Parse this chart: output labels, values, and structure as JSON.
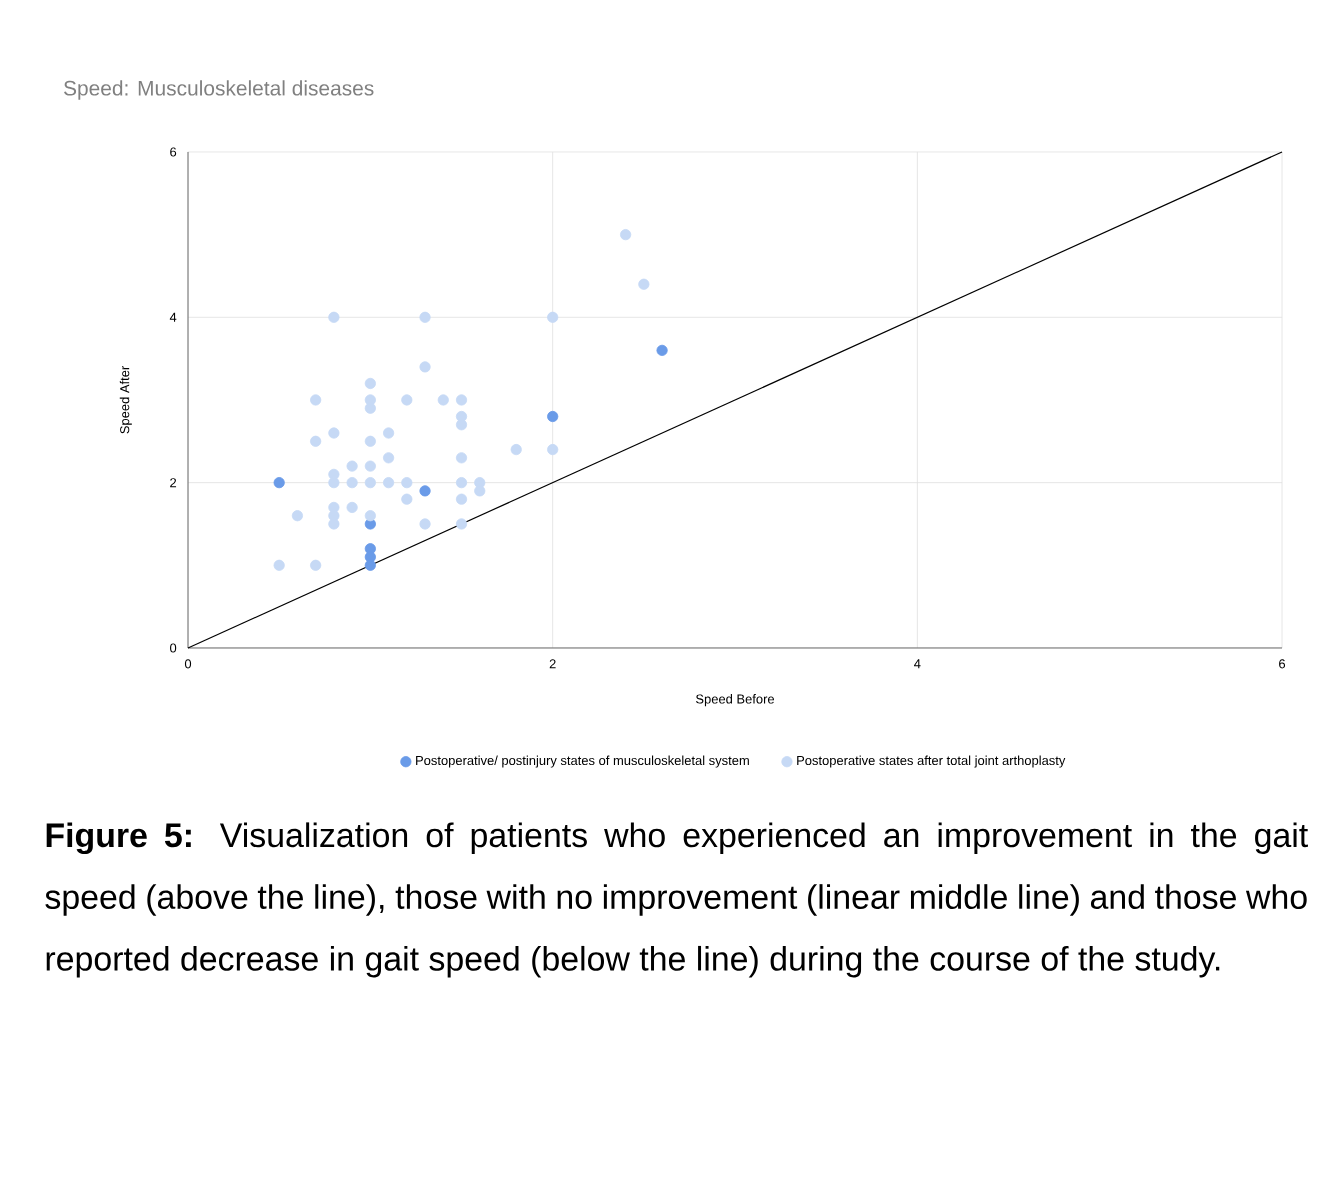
{
  "chart_data": {
    "type": "scatter",
    "title": "Speed: Musculoskeletal diseases",
    "xlabel": "Speed Before",
    "ylabel": "Speed After",
    "xlim": [
      0,
      6
    ],
    "ylim": [
      0,
      6
    ],
    "xticks": [
      0,
      2,
      4,
      6
    ],
    "yticks": [
      0,
      2,
      4,
      6
    ],
    "grid": true,
    "legend": "bottom",
    "series": [
      {
        "name": "Postoperative/ postinjury states of musculoskeletal system",
        "color": "#6a9be8",
        "marker": "circle",
        "x": [
          0.5,
          1.3,
          1.0,
          1.0,
          1.0,
          1.0,
          2.0,
          2.6
        ],
        "values": [
          2.0,
          1.9,
          1.5,
          1.2,
          1.1,
          1.0,
          2.8,
          3.6
        ]
      },
      {
        "name": "Postoperative states after total joint arthoplasty",
        "color": "#c6d9f5",
        "marker": "circle",
        "x": [
          0.8,
          1.3,
          2.0,
          1.3,
          1.0,
          0.7,
          1.0,
          1.0,
          1.2,
          1.4,
          1.5,
          1.5,
          1.5,
          0.7,
          0.8,
          1.0,
          1.1,
          1.8,
          2.0,
          0.9,
          1.0,
          1.1,
          0.8,
          0.8,
          0.9,
          1.0,
          1.1,
          1.2,
          1.2,
          1.5,
          1.6,
          1.6,
          1.5,
          1.5,
          0.6,
          0.8,
          0.8,
          0.8,
          0.9,
          1.0,
          1.3,
          1.5,
          0.5,
          0.7,
          2.4,
          2.5
        ],
        "values": [
          4.0,
          4.0,
          4.0,
          3.4,
          3.2,
          3.0,
          3.0,
          2.9,
          3.0,
          3.0,
          3.0,
          2.8,
          2.7,
          2.5,
          2.6,
          2.5,
          2.6,
          2.4,
          2.4,
          2.2,
          2.2,
          2.3,
          2.1,
          2.0,
          2.0,
          2.0,
          2.0,
          2.0,
          1.8,
          2.0,
          2.0,
          1.9,
          1.8,
          2.3,
          1.6,
          1.7,
          1.6,
          1.5,
          1.7,
          1.6,
          1.5,
          1.5,
          1.0,
          1.0,
          5.0,
          4.4
        ]
      },
      {
        "type": "line",
        "color": "#000000",
        "marker": "none",
        "x": [
          0,
          6
        ],
        "values": [
          0,
          6
        ]
      }
    ],
    "annotations": [
      "**Figure 5:** Visualization of patients who experienced an improvement in the gait speed (above the line), those with no improvement (linear middle line) and those who reported decrease in gait speed (below the line) during the course of the study."
    ]
  }
}
